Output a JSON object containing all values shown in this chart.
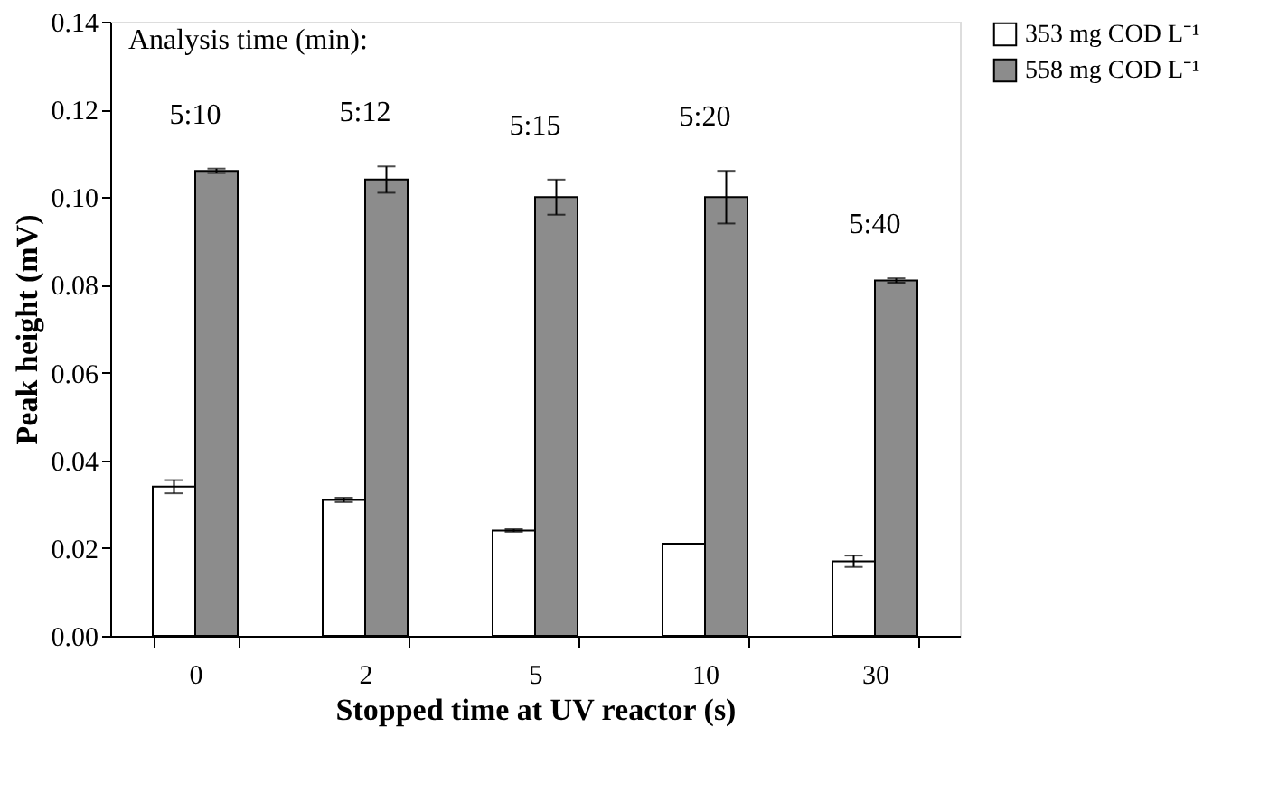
{
  "chart_data": {
    "type": "bar",
    "xlabel": "Stopped time at UV reactor (s)",
    "ylabel": "Peak height (mV)",
    "categories": [
      "0",
      "2",
      "5",
      "10",
      "30"
    ],
    "series": [
      {
        "name": "353 mg COD L⁻¹",
        "color": "#ffffff",
        "values": [
          0.034,
          0.031,
          0.024,
          0.021,
          0.017
        ],
        "errors": [
          0.0015,
          0.0005,
          0.0003,
          null,
          0.0013
        ]
      },
      {
        "name": "558 mg COD L⁻¹",
        "color": "#8c8c8c",
        "values": [
          0.106,
          0.104,
          0.1,
          0.1,
          0.081
        ],
        "errors": [
          0.0005,
          0.003,
          0.004,
          0.006,
          0.0005
        ]
      }
    ],
    "ylim": [
      0,
      0.14
    ],
    "yticks": [
      {
        "value": 0,
        "label": "0.00"
      },
      0.02,
      0.04,
      0.06,
      0.08,
      {
        "value": 0.1,
        "label": "0.10"
      },
      0.12,
      0.14
    ],
    "annotations": [
      "Analysis time (min):",
      "5:10",
      "5:12",
      "5:15",
      "5:20",
      "5:40"
    ],
    "grid": false,
    "legend": "top right"
  }
}
